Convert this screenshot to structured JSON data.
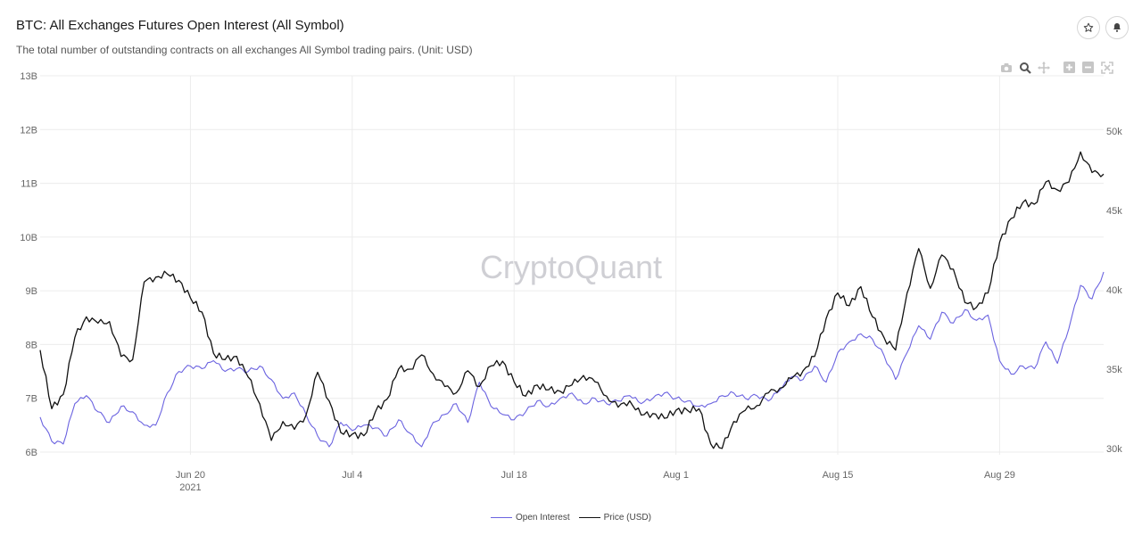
{
  "header": {
    "title": "BTC: All Exchanges Futures Open Interest (All Symbol)",
    "subtitle": "The total number of outstanding contracts on all exchanges All Symbol trading pairs. (Unit: USD)",
    "favorite_icon": "star-icon",
    "alert_icon": "bell-icon"
  },
  "modebar": {
    "icons": [
      "camera-icon",
      "zoom-icon",
      "pan-icon",
      "zoom-in-icon",
      "zoom-out-icon",
      "autoscale-icon"
    ]
  },
  "watermark": "CryptoQuant",
  "colors": {
    "open_interest": "#6b63e0",
    "price": "#111111",
    "grid": "#ececec",
    "axis_text": "#666666"
  },
  "chart_data": {
    "type": "line",
    "title": "BTC: All Exchanges Futures Open Interest (All Symbol)",
    "x_range": [
      "2021-06-07",
      "2021-09-07"
    ],
    "x_ticks": [
      {
        "date": "2021-06-20",
        "label": "Jun 20",
        "sublabel": "2021"
      },
      {
        "date": "2021-07-04",
        "label": "Jul 4",
        "sublabel": ""
      },
      {
        "date": "2021-07-18",
        "label": "Jul 18",
        "sublabel": ""
      },
      {
        "date": "2021-08-01",
        "label": "Aug 1",
        "sublabel": ""
      },
      {
        "date": "2021-08-15",
        "label": "Aug 15",
        "sublabel": ""
      },
      {
        "date": "2021-08-29",
        "label": "Aug 29",
        "sublabel": ""
      }
    ],
    "y_left": {
      "range": [
        5950000000.0,
        13000000000.0
      ],
      "ticks": [
        6000000000.0,
        7000000000.0,
        8000000000.0,
        9000000000.0,
        10000000000.0,
        11000000000.0,
        12000000000.0,
        13000000000.0
      ],
      "tick_labels": [
        "6B",
        "7B",
        "8B",
        "9B",
        "10B",
        "11B",
        "12B",
        "13B"
      ]
    },
    "y_right": {
      "range": [
        29600,
        53500
      ],
      "ticks": [
        30000,
        35000,
        40000,
        45000,
        50000
      ],
      "tick_labels": [
        "30k",
        "35k",
        "40k",
        "45k",
        "50k"
      ]
    },
    "legend_position": "bottom-center",
    "grid": true,
    "series": [
      {
        "name": "Open Interest",
        "axis": "left",
        "color": "#6b63e0",
        "points": [
          [
            "2021-06-07",
            6650000000.0
          ],
          [
            "2021-06-08",
            6200000000.0
          ],
          [
            "2021-06-09",
            6150000000.0
          ],
          [
            "2021-06-10",
            6900000000.0
          ],
          [
            "2021-06-11",
            7050000000.0
          ],
          [
            "2021-06-12",
            6750000000.0
          ],
          [
            "2021-06-13",
            6550000000.0
          ],
          [
            "2021-06-14",
            6850000000.0
          ],
          [
            "2021-06-15",
            6750000000.0
          ],
          [
            "2021-06-16",
            6500000000.0
          ],
          [
            "2021-06-17",
            6500000000.0
          ],
          [
            "2021-06-18",
            7100000000.0
          ],
          [
            "2021-06-19",
            7500000000.0
          ],
          [
            "2021-06-20",
            7600000000.0
          ],
          [
            "2021-06-21",
            7550000000.0
          ],
          [
            "2021-06-22",
            7700000000.0
          ],
          [
            "2021-06-23",
            7500000000.0
          ],
          [
            "2021-06-24",
            7550000000.0
          ],
          [
            "2021-06-25",
            7500000000.0
          ],
          [
            "2021-06-26",
            7600000000.0
          ],
          [
            "2021-06-27",
            7350000000.0
          ],
          [
            "2021-06-28",
            7000000000.0
          ],
          [
            "2021-06-29",
            7100000000.0
          ],
          [
            "2021-06-30",
            6700000000.0
          ],
          [
            "2021-07-01",
            6300000000.0
          ],
          [
            "2021-07-02",
            6100000000.0
          ],
          [
            "2021-07-03",
            6550000000.0
          ],
          [
            "2021-07-04",
            6400000000.0
          ],
          [
            "2021-07-05",
            6500000000.0
          ],
          [
            "2021-07-06",
            6450000000.0
          ],
          [
            "2021-07-07",
            6300000000.0
          ],
          [
            "2021-07-08",
            6600000000.0
          ],
          [
            "2021-07-09",
            6350000000.0
          ],
          [
            "2021-07-10",
            6100000000.0
          ],
          [
            "2021-07-11",
            6550000000.0
          ],
          [
            "2021-07-12",
            6700000000.0
          ],
          [
            "2021-07-13",
            6900000000.0
          ],
          [
            "2021-07-14",
            6550000000.0
          ],
          [
            "2021-07-15",
            7300000000.0
          ],
          [
            "2021-07-16",
            6850000000.0
          ],
          [
            "2021-07-17",
            6700000000.0
          ],
          [
            "2021-07-18",
            6600000000.0
          ],
          [
            "2021-07-19",
            6750000000.0
          ],
          [
            "2021-07-20",
            6950000000.0
          ],
          [
            "2021-07-21",
            6850000000.0
          ],
          [
            "2021-07-22",
            7000000000.0
          ],
          [
            "2021-07-23",
            7100000000.0
          ],
          [
            "2021-07-24",
            6900000000.0
          ],
          [
            "2021-07-25",
            7000000000.0
          ],
          [
            "2021-07-26",
            6900000000.0
          ],
          [
            "2021-07-27",
            6950000000.0
          ],
          [
            "2021-07-28",
            7050000000.0
          ],
          [
            "2021-07-29",
            6900000000.0
          ],
          [
            "2021-07-30",
            7000000000.0
          ],
          [
            "2021-07-31",
            7100000000.0
          ],
          [
            "2021-08-01",
            7000000000.0
          ],
          [
            "2021-08-02",
            6950000000.0
          ],
          [
            "2021-08-03",
            6850000000.0
          ],
          [
            "2021-08-04",
            6900000000.0
          ],
          [
            "2021-08-05",
            7050000000.0
          ],
          [
            "2021-08-06",
            7100000000.0
          ],
          [
            "2021-08-07",
            7000000000.0
          ],
          [
            "2021-08-08",
            7050000000.0
          ],
          [
            "2021-08-09",
            6950000000.0
          ],
          [
            "2021-08-10",
            7150000000.0
          ],
          [
            "2021-08-11",
            7400000000.0
          ],
          [
            "2021-08-12",
            7350000000.0
          ],
          [
            "2021-08-13",
            7600000000.0
          ],
          [
            "2021-08-14",
            7300000000.0
          ],
          [
            "2021-08-15",
            7850000000.0
          ],
          [
            "2021-08-16",
            8050000000.0
          ],
          [
            "2021-08-17",
            8200000000.0
          ],
          [
            "2021-08-18",
            8100000000.0
          ],
          [
            "2021-08-19",
            7800000000.0
          ],
          [
            "2021-08-20",
            7350000000.0
          ],
          [
            "2021-08-21",
            7850000000.0
          ],
          [
            "2021-08-22",
            8350000000.0
          ],
          [
            "2021-08-23",
            8100000000.0
          ],
          [
            "2021-08-24",
            8600000000.0
          ],
          [
            "2021-08-25",
            8400000000.0
          ],
          [
            "2021-08-26",
            8650000000.0
          ],
          [
            "2021-08-27",
            8450000000.0
          ],
          [
            "2021-08-28",
            8550000000.0
          ],
          [
            "2021-08-29",
            7700000000.0
          ],
          [
            "2021-08-30",
            7450000000.0
          ],
          [
            "2021-08-31",
            7600000000.0
          ],
          [
            "2021-09-01",
            7550000000.0
          ],
          [
            "2021-09-02",
            8050000000.0
          ],
          [
            "2021-09-03",
            7650000000.0
          ],
          [
            "2021-09-04",
            8300000000.0
          ],
          [
            "2021-09-05",
            9100000000.0
          ],
          [
            "2021-09-06",
            8850000000.0
          ],
          [
            "2021-09-07",
            9350000000.0
          ]
        ]
      },
      {
        "name": "Price (USD)",
        "axis": "right",
        "color": "#111111",
        "points": [
          [
            "2021-06-07",
            36200
          ],
          [
            "2021-06-08",
            32500
          ],
          [
            "2021-06-09",
            33400
          ],
          [
            "2021-06-10",
            37000
          ],
          [
            "2021-06-11",
            38300
          ],
          [
            "2021-06-12",
            37900
          ],
          [
            "2021-06-13",
            38000
          ],
          [
            "2021-06-14",
            35800
          ],
          [
            "2021-06-15",
            35600
          ],
          [
            "2021-06-16",
            40500
          ],
          [
            "2021-06-17",
            40800
          ],
          [
            "2021-06-18",
            41000
          ],
          [
            "2021-06-19",
            40600
          ],
          [
            "2021-06-20",
            39500
          ],
          [
            "2021-06-21",
            38600
          ],
          [
            "2021-06-22",
            36000
          ],
          [
            "2021-06-23",
            35600
          ],
          [
            "2021-06-24",
            35800
          ],
          [
            "2021-06-25",
            34500
          ],
          [
            "2021-06-26",
            32800
          ],
          [
            "2021-06-27",
            30500
          ],
          [
            "2021-06-28",
            31700
          ],
          [
            "2021-06-29",
            31200
          ],
          [
            "2021-06-30",
            32100
          ],
          [
            "2021-07-01",
            34800
          ],
          [
            "2021-07-02",
            33000
          ],
          [
            "2021-07-03",
            31000
          ],
          [
            "2021-07-04",
            30900
          ],
          [
            "2021-07-05",
            30800
          ],
          [
            "2021-07-06",
            32300
          ],
          [
            "2021-07-07",
            33100
          ],
          [
            "2021-07-08",
            35000
          ],
          [
            "2021-07-09",
            35000
          ],
          [
            "2021-07-10",
            35900
          ],
          [
            "2021-07-11",
            34700
          ],
          [
            "2021-07-12",
            33900
          ],
          [
            "2021-07-13",
            33500
          ],
          [
            "2021-07-14",
            34900
          ],
          [
            "2021-07-15",
            33900
          ],
          [
            "2021-07-16",
            35200
          ],
          [
            "2021-07-17",
            35500
          ],
          [
            "2021-07-18",
            34200
          ],
          [
            "2021-07-19",
            33300
          ],
          [
            "2021-07-20",
            34000
          ],
          [
            "2021-07-21",
            33700
          ],
          [
            "2021-07-22",
            33600
          ],
          [
            "2021-07-23",
            34000
          ],
          [
            "2021-07-24",
            34600
          ],
          [
            "2021-07-25",
            34200
          ],
          [
            "2021-07-26",
            33300
          ],
          [
            "2021-07-27",
            32600
          ],
          [
            "2021-07-28",
            33000
          ],
          [
            "2021-07-29",
            32100
          ],
          [
            "2021-07-30",
            32200
          ],
          [
            "2021-07-31",
            31900
          ],
          [
            "2021-08-01",
            32400
          ],
          [
            "2021-08-02",
            32400
          ],
          [
            "2021-08-03",
            32500
          ],
          [
            "2021-08-04",
            30300
          ],
          [
            "2021-08-05",
            30000
          ],
          [
            "2021-08-06",
            31700
          ],
          [
            "2021-08-07",
            32400
          ],
          [
            "2021-08-08",
            32700
          ],
          [
            "2021-08-09",
            33500
          ],
          [
            "2021-08-10",
            33800
          ],
          [
            "2021-08-11",
            34400
          ],
          [
            "2021-08-12",
            34900
          ],
          [
            "2021-08-13",
            35800
          ],
          [
            "2021-08-14",
            38200
          ],
          [
            "2021-08-15",
            39800
          ],
          [
            "2021-08-16",
            39000
          ],
          [
            "2021-08-17",
            40200
          ],
          [
            "2021-08-18",
            38300
          ],
          [
            "2021-08-19",
            37000
          ],
          [
            "2021-08-20",
            36200
          ],
          [
            "2021-08-21",
            39800
          ],
          [
            "2021-08-22",
            42600
          ],
          [
            "2021-08-23",
            40100
          ],
          [
            "2021-08-24",
            42200
          ],
          [
            "2021-08-25",
            41300
          ],
          [
            "2021-08-26",
            39200
          ],
          [
            "2021-08-27",
            38900
          ],
          [
            "2021-08-28",
            39800
          ],
          [
            "2021-08-29",
            43000
          ],
          [
            "2021-08-30",
            44500
          ],
          [
            "2021-08-31",
            45500
          ],
          [
            "2021-09-01",
            45400
          ],
          [
            "2021-09-02",
            46800
          ],
          [
            "2021-09-03",
            46300
          ],
          [
            "2021-09-04",
            46800
          ],
          [
            "2021-09-05",
            48700
          ],
          [
            "2021-09-06",
            47400
          ],
          [
            "2021-09-07",
            47300
          ]
        ]
      }
    ]
  },
  "legend": {
    "items": [
      {
        "label": "Open Interest",
        "color": "#6b63e0"
      },
      {
        "label": "Price (USD)",
        "color": "#111111"
      }
    ]
  }
}
